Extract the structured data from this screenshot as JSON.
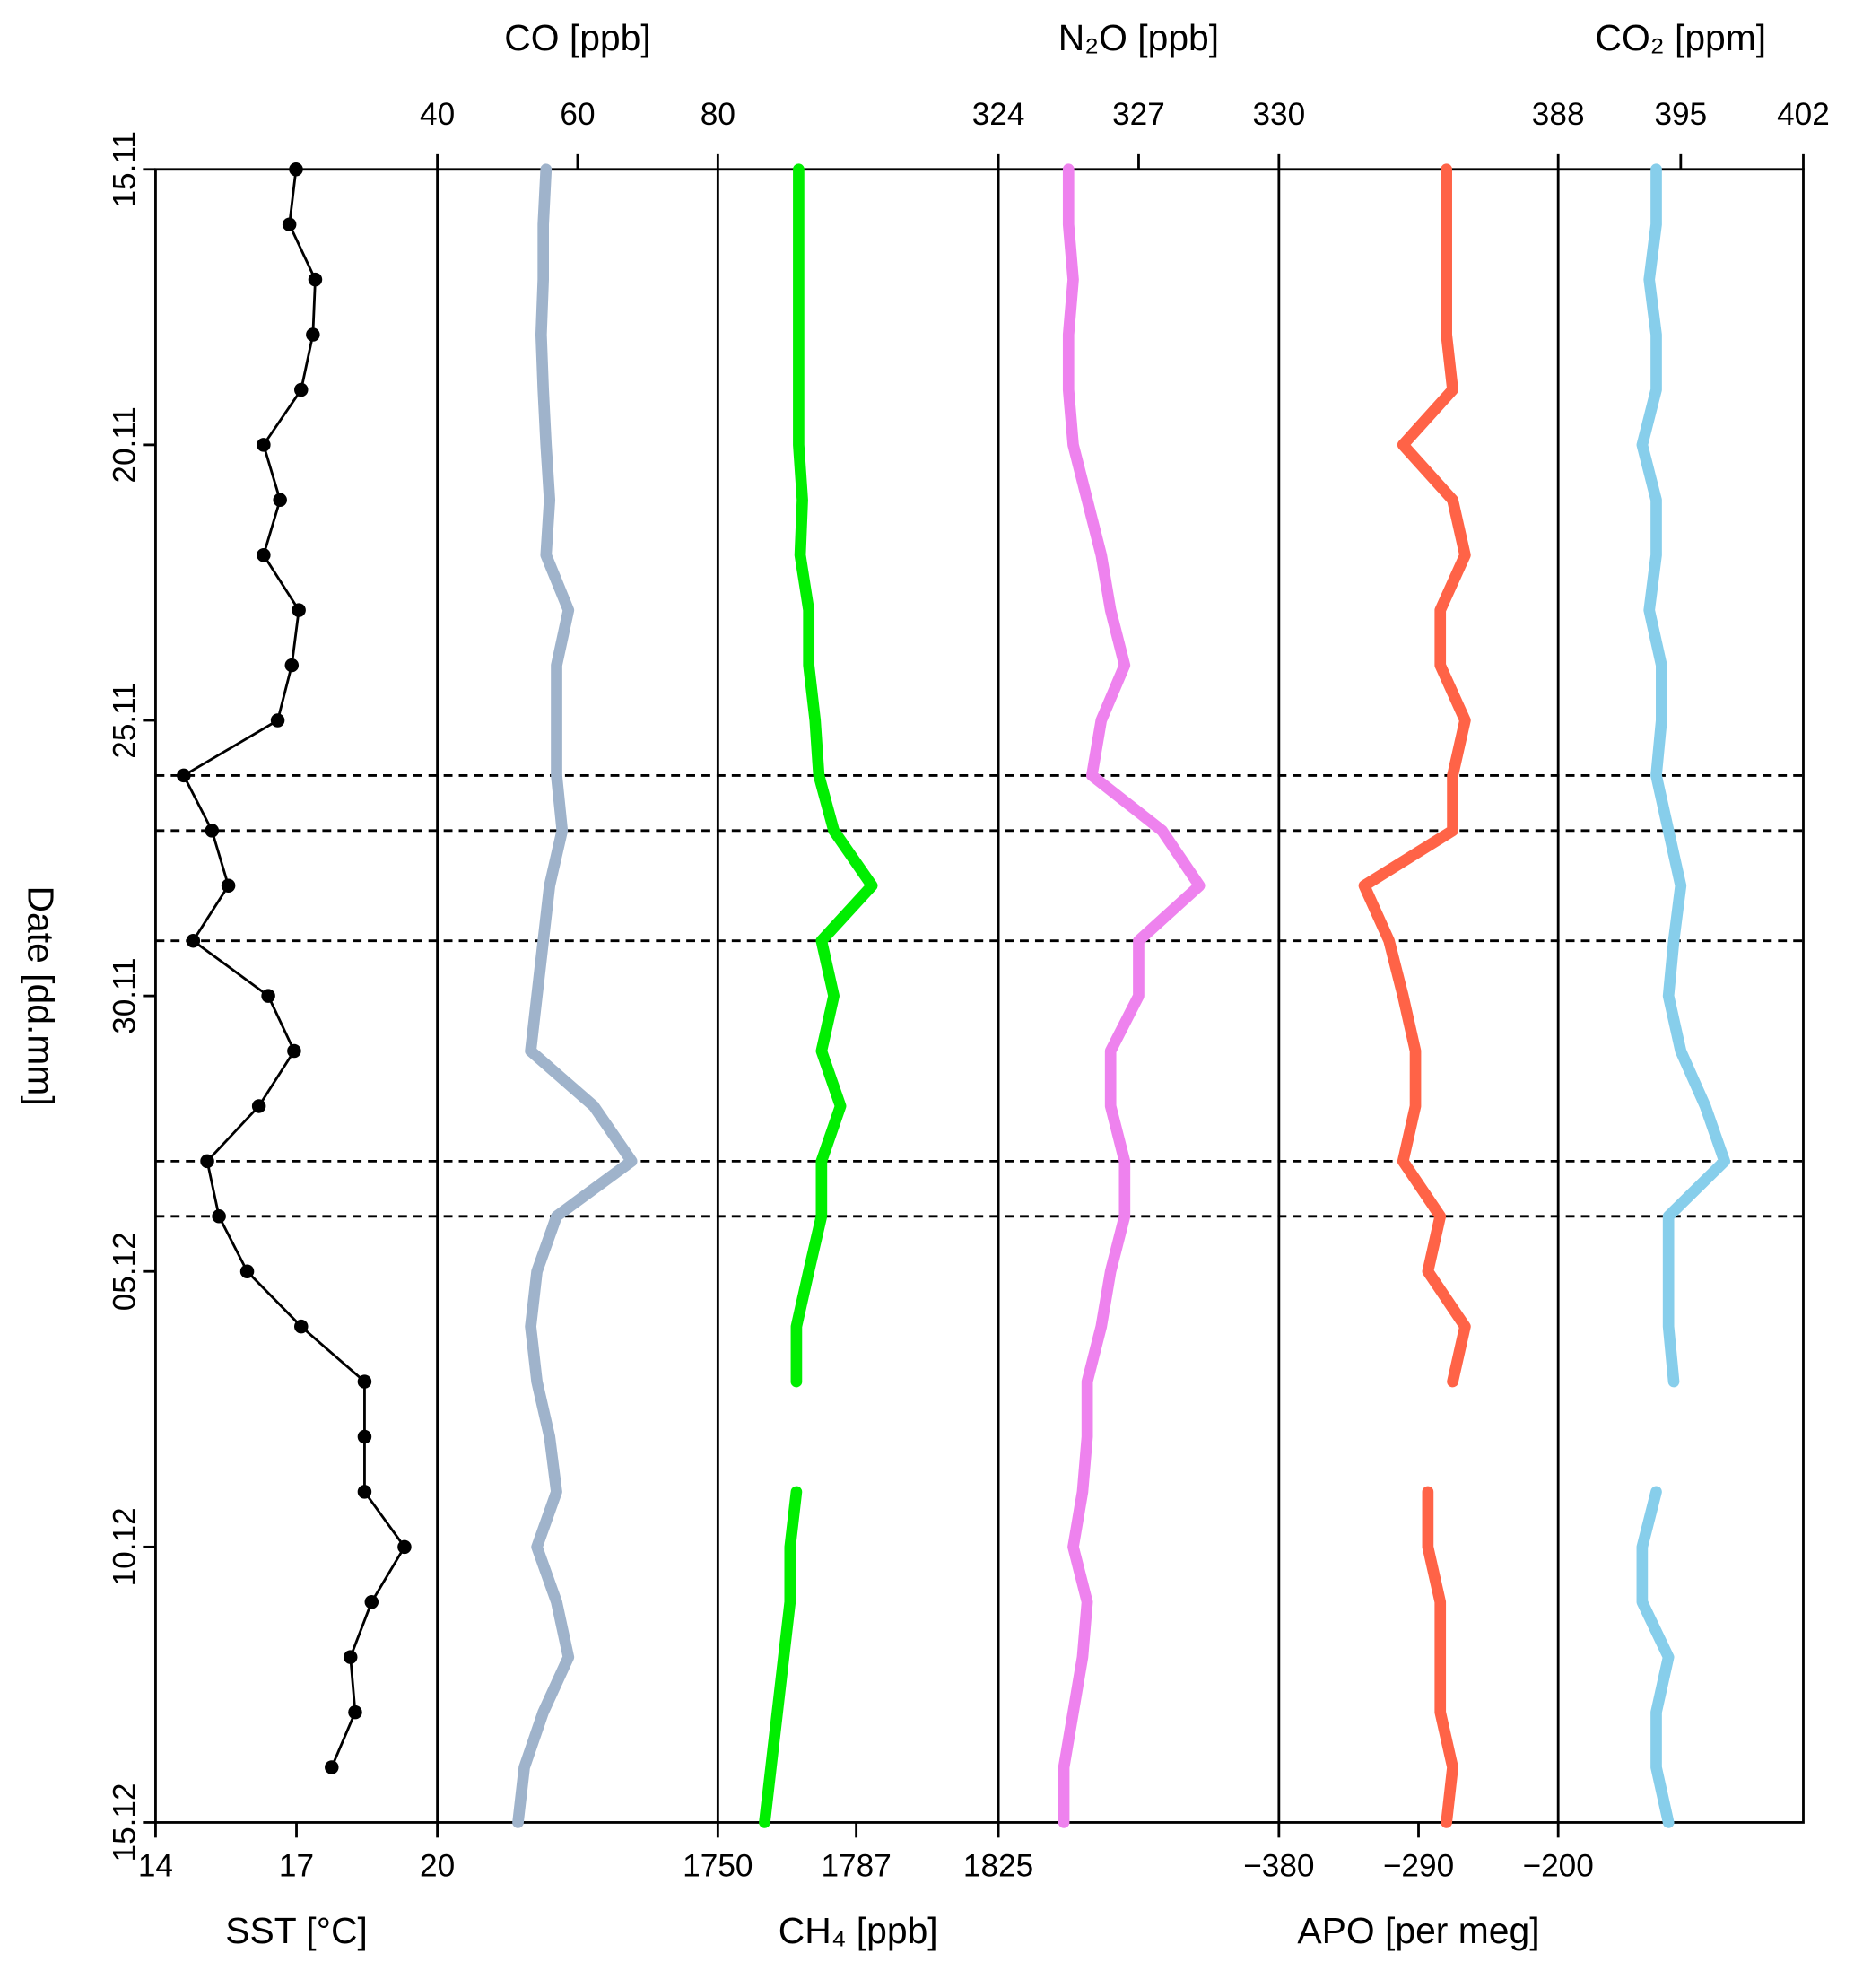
{
  "chart_data": {
    "type": "line",
    "y_label": "Date [dd.mm]",
    "categories": [
      "15.11",
      null,
      null,
      null,
      null,
      "20.11",
      null,
      null,
      null,
      null,
      "25.11",
      null,
      null,
      null,
      null,
      "30.11",
      null,
      null,
      null,
      null,
      "05.12",
      null,
      null,
      null,
      null,
      "10.12",
      null,
      null,
      null,
      null,
      "15.12"
    ],
    "reference_lines": [
      11,
      12,
      14,
      18,
      19
    ],
    "panels": [
      {
        "label": "SST [°C]",
        "axis": "bottom",
        "xlim": [
          14,
          20
        ],
        "xticks": [
          14,
          17,
          20
        ],
        "series": [
          {
            "name": "SST",
            "color": "#000000",
            "markers": true,
            "values": [
              16.99,
              16.85,
              17.4,
              17.35,
              17.1,
              16.3,
              16.65,
              16.3,
              17.05,
              16.9,
              16.6,
              14.6,
              15.2,
              15.55,
              14.8,
              16.4,
              16.95,
              16.2,
              15.1,
              15.35,
              15.95,
              17.1,
              18.45,
              18.45,
              18.45,
              19.3,
              18.6,
              18.15,
              18.25,
              17.75,
              null
            ]
          }
        ]
      },
      {
        "label": "CO [ppb]",
        "axis": "top",
        "xlim": [
          40,
          80
        ],
        "xticks": [
          40,
          60,
          80
        ],
        "series": [
          {
            "name": "CO",
            "color": "#9fb3cb",
            "markers": false,
            "values": [
              55.5,
              55.1,
              55.1,
              54.8,
              55.1,
              55.5,
              56,
              55.5,
              58.7,
              57,
              57,
              57,
              57.8,
              56,
              55.1,
              54.2,
              53.3,
              62.3,
              67.7,
              57,
              54.2,
              53.3,
              54.2,
              56,
              57,
              54.2,
              57,
              58.7,
              55.1,
              52.4,
              51.5
            ]
          }
        ]
      },
      {
        "label": "CH₄ [ppb]",
        "axis": "bottom",
        "xlim": [
          1750,
          1825
        ],
        "xticks": [
          1750,
          1787,
          1825
        ],
        "series": [
          {
            "name": "CH4",
            "color": "#00ee00",
            "markers": false,
            "values": [
              1771.6,
              1771.6,
              1771.6,
              1771.6,
              1771.6,
              1771.6,
              1772.6,
              1772,
              1774.3,
              1774.3,
              1776,
              1777,
              1781,
              1791.2,
              1777.7,
              1781,
              1777.7,
              1782.8,
              1777.7,
              1777.7,
              1774.3,
              1771,
              1771,
              null,
              1771,
              1769.3,
              1769.3,
              1767.6,
              1765.9,
              1764.2,
              1762.5
            ]
          }
        ]
      },
      {
        "label": "N₂O [ppb]",
        "axis": "top",
        "xlim": [
          324,
          330
        ],
        "xticks": [
          324,
          327,
          330
        ],
        "series": [
          {
            "name": "N2O",
            "color": "#ee82ee",
            "markers": false,
            "values": [
              325.5,
              325.5,
              325.6,
              325.5,
              325.5,
              325.6,
              325.9,
              326.2,
              326.4,
              326.7,
              326.2,
              326,
              327.5,
              328.3,
              327,
              327,
              326.4,
              326.4,
              326.7,
              326.7,
              326.4,
              326.2,
              325.9,
              325.9,
              325.8,
              325.6,
              325.9,
              325.8,
              325.6,
              325.4,
              325.4
            ]
          }
        ]
      },
      {
        "label": "APO [per meg]",
        "axis": "bottom",
        "xlim": [
          -380,
          -200
        ],
        "xticks": [
          {
            "value": -380,
            "label": "−380"
          },
          {
            "value": -290,
            "label": "−290"
          },
          {
            "value": -200,
            "label": "−200"
          }
        ],
        "series": [
          {
            "name": "APO",
            "color": "#ff6347",
            "markers": false,
            "values": [
              -272,
              -272,
              -272,
              -272,
              -268,
              -300,
              -268,
              -260,
              -276,
              -276,
              -260,
              -268,
              -268,
              -325,
              -309,
              -300,
              -292,
              -292,
              -300,
              -276,
              -284,
              -260,
              -268,
              null,
              -284,
              -284,
              -276,
              -276,
              -276,
              -268,
              -272
            ]
          }
        ]
      },
      {
        "label": "CO₂ [ppm]",
        "axis": "top",
        "xlim": [
          388,
          402
        ],
        "xticks": [
          388,
          395,
          402
        ],
        "series": [
          {
            "name": "CO2",
            "color": "#87ceeb",
            "markers": false,
            "values": [
              393.6,
              393.6,
              393.2,
              393.6,
              393.6,
              392.8,
              393.6,
              393.6,
              393.2,
              393.9,
              393.9,
              393.6,
              394.3,
              395,
              394.6,
              394.3,
              395,
              396.4,
              397.5,
              394.3,
              394.3,
              394.3,
              394.6,
              null,
              393.6,
              392.8,
              392.8,
              394.3,
              393.6,
              393.6,
              394.3
            ]
          }
        ]
      }
    ]
  }
}
